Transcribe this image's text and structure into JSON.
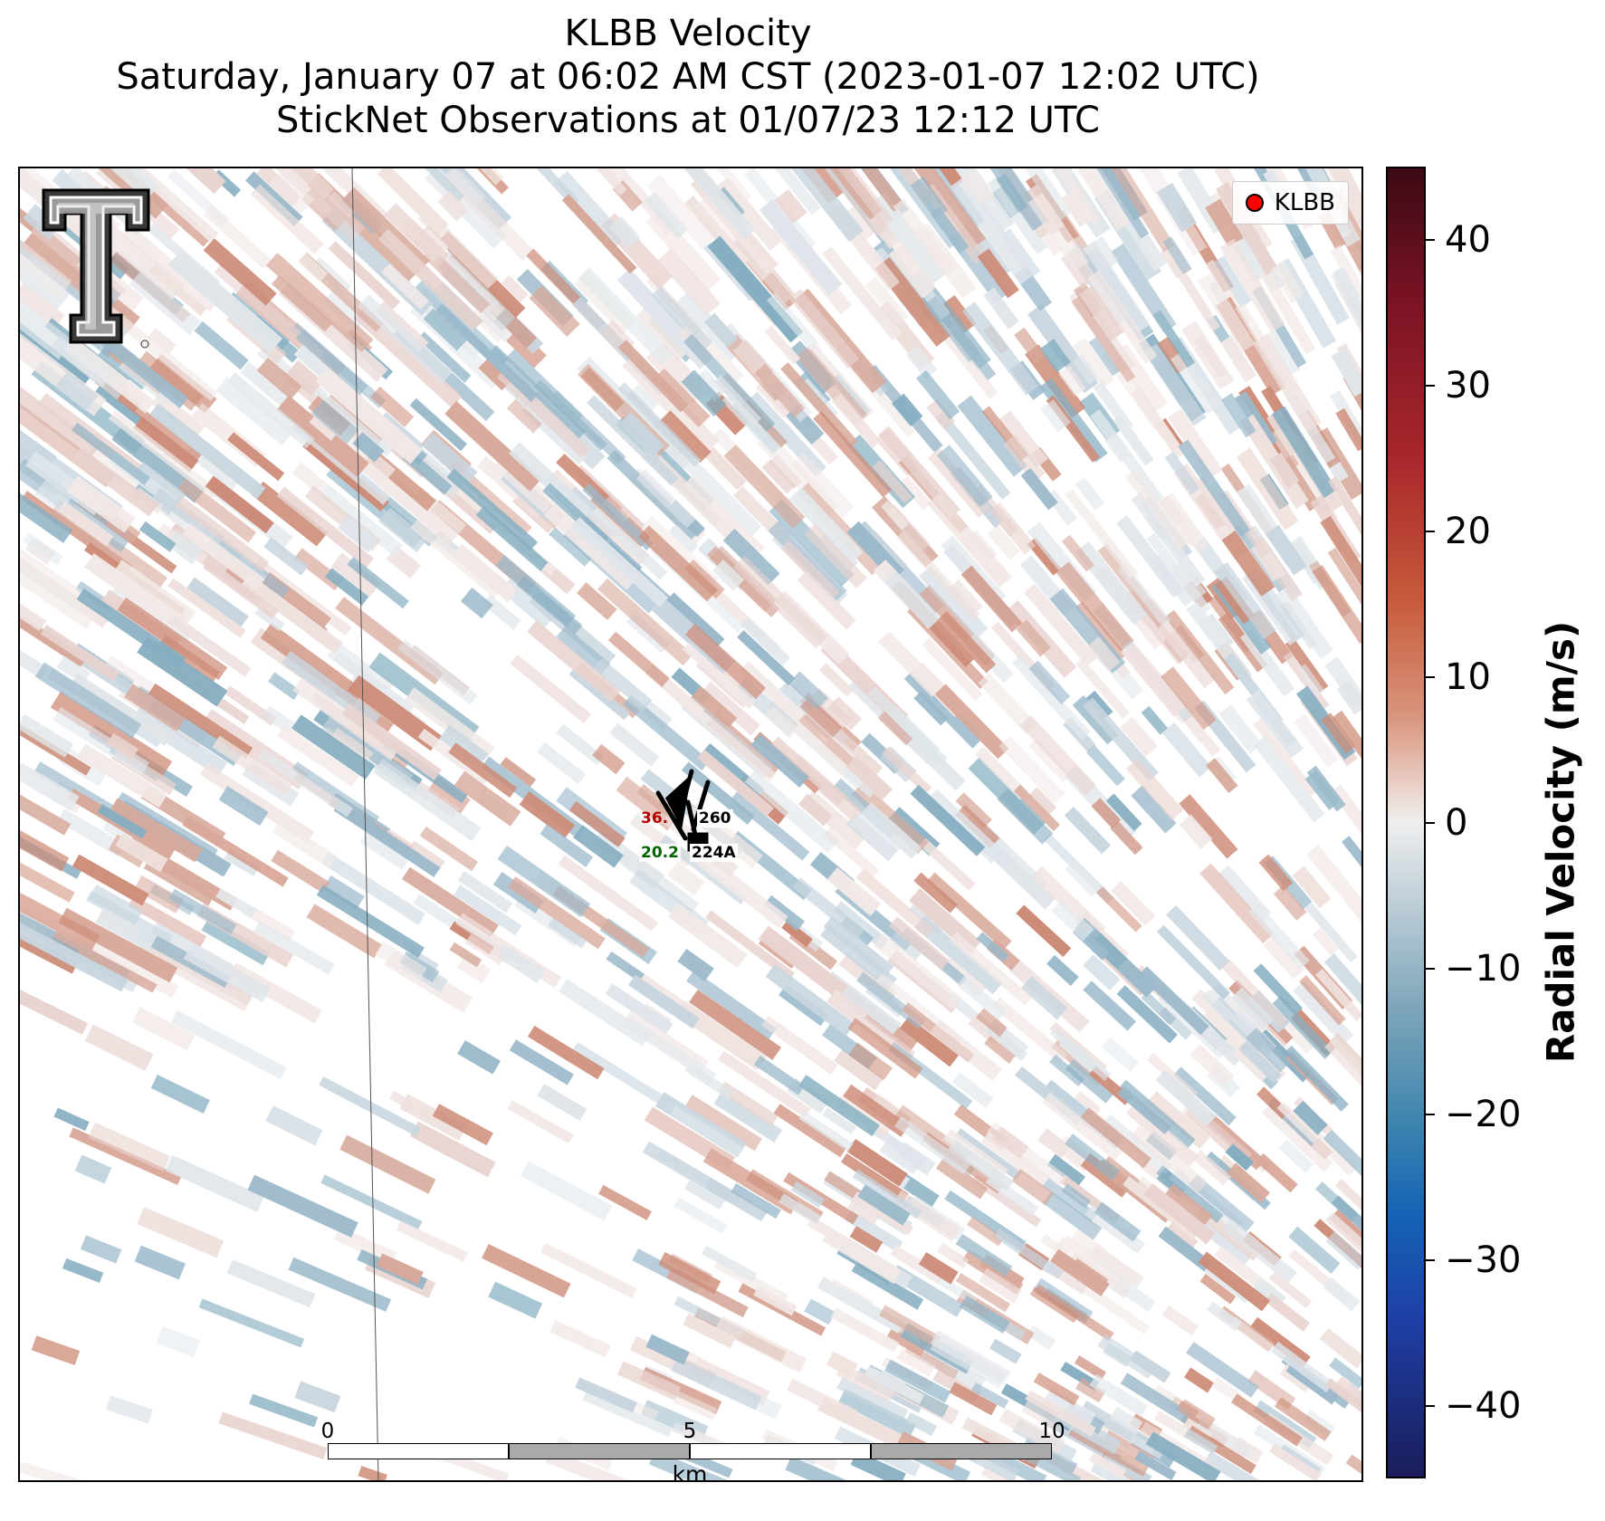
{
  "title": {
    "line1": "KLBB Velocity",
    "line2": "Saturday, January 07 at 06:02 AM CST (2023-01-07 12:02 UTC)",
    "line3": "StickNet Observations at 01/07/23 12:12 UTC"
  },
  "legend": {
    "label": "KLBB",
    "marker_color": "#ff0000"
  },
  "stations": [
    {
      "id": "260",
      "temperature": "36.",
      "temperature_color": "#b30000"
    },
    {
      "id": "224A",
      "dewpoint": "20.2",
      "dewpoint_color": "#006400"
    }
  ],
  "scalebar": {
    "ticks": [
      "0",
      "5",
      "10"
    ],
    "unit": "km"
  },
  "colorbar": {
    "label": "Radial Velocity (m/s)",
    "ticks": [
      "40",
      "30",
      "20",
      "10",
      "0",
      "−10",
      "−20",
      "−30",
      "−40"
    ],
    "range": [
      -45,
      45
    ]
  },
  "logo": {
    "name": "texas-tech-double-t-logo"
  }
}
